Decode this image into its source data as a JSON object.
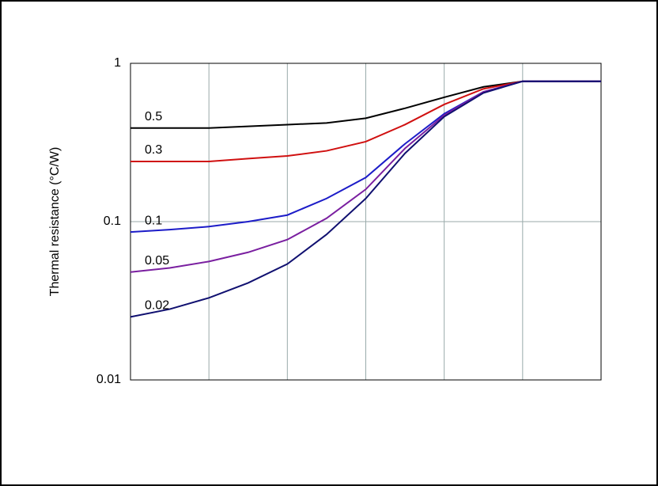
{
  "chart_data": {
    "type": "line",
    "y_label": "Thermal resistance (°C/W)",
    "x": [
      0,
      0.5,
      1,
      1.5,
      2,
      2.5,
      3,
      3.5,
      4,
      4.5,
      5,
      5.5,
      6
    ],
    "xlim": [
      0,
      6
    ],
    "xticks": [
      1,
      2,
      3,
      4,
      5
    ],
    "ylim": [
      0.01,
      1
    ],
    "yticks": [
      0.01,
      0.1,
      1
    ],
    "log_y": true,
    "grid": true,
    "series": [
      {
        "name": "0.5",
        "color": "#000000",
        "values": [
          0.39,
          0.39,
          0.39,
          0.4,
          0.41,
          0.42,
          0.45,
          0.52,
          0.61,
          0.71,
          0.77,
          0.77,
          0.77
        ]
      },
      {
        "name": "0.3",
        "color": "#d01010",
        "values": [
          0.24,
          0.24,
          0.24,
          0.25,
          0.26,
          0.28,
          0.32,
          0.41,
          0.55,
          0.69,
          0.77,
          0.77,
          0.77
        ]
      },
      {
        "name": "0.1",
        "color": "#1c1cc8",
        "values": [
          0.086,
          0.089,
          0.093,
          0.1,
          0.11,
          0.14,
          0.19,
          0.31,
          0.48,
          0.66,
          0.77,
          0.77,
          0.77
        ]
      },
      {
        "name": "0.05",
        "color": "#7a1fa0",
        "values": [
          0.048,
          0.051,
          0.056,
          0.064,
          0.077,
          0.105,
          0.16,
          0.29,
          0.47,
          0.66,
          0.77,
          0.77,
          0.77
        ]
      },
      {
        "name": "0.02",
        "color": "#101070",
        "values": [
          0.025,
          0.028,
          0.033,
          0.041,
          0.054,
          0.083,
          0.14,
          0.27,
          0.46,
          0.65,
          0.77,
          0.77,
          0.77
        ]
      }
    ]
  }
}
